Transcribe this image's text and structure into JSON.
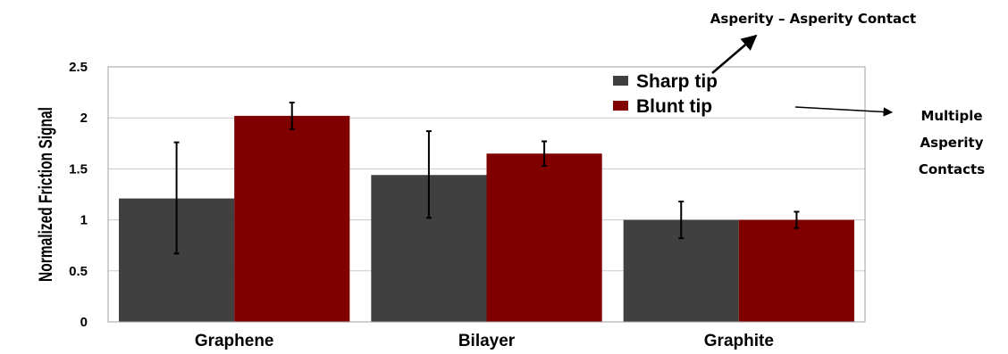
{
  "chart_data": {
    "type": "bar",
    "ylabel": "Normalized Friction Signal",
    "ylim": [
      0,
      2.5
    ],
    "yticks": [
      0,
      0.5,
      1,
      1.5,
      2,
      2.5
    ],
    "ytick_labels": [
      "0",
      "0.5",
      "1",
      "1.5",
      "2",
      "2.5"
    ],
    "grid": true,
    "legend_position": "top-right",
    "categories": [
      "Graphene",
      "Bilayer",
      "Graphite"
    ],
    "series": [
      {
        "name": "Sharp tip",
        "color": "#404040",
        "values": [
          1.21,
          1.44,
          1.0
        ],
        "error_low": [
          0.67,
          1.02,
          0.82
        ],
        "error_high": [
          1.76,
          1.87,
          1.18
        ]
      },
      {
        "name": "Blunt tip",
        "color": "#800000",
        "values": [
          2.02,
          1.65,
          1.0
        ],
        "error_low": [
          1.89,
          1.53,
          0.92
        ],
        "error_high": [
          2.15,
          1.77,
          1.08
        ]
      }
    ],
    "annotations": {
      "sharp": "Asperity – Asperity Contact",
      "blunt": [
        "Multiple",
        "Asperity",
        "Contacts"
      ]
    }
  }
}
